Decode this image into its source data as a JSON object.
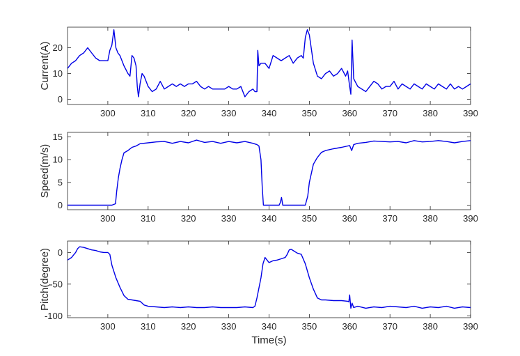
{
  "chart_data": [
    {
      "type": "line",
      "title": "",
      "xlabel": "",
      "ylabel": "Current(A)",
      "xlim": [
        290,
        390
      ],
      "ylim": [
        -2,
        28
      ],
      "xticks": [
        300,
        310,
        320,
        330,
        340,
        350,
        360,
        370,
        380,
        390
      ],
      "yticks": [
        0,
        10,
        20
      ],
      "color": "#0000e6",
      "series": [
        {
          "x": [
            290,
            291,
            292,
            293,
            294,
            295,
            296,
            297,
            298,
            299,
            300,
            300.5,
            301,
            301.5,
            302,
            302.5,
            303,
            304,
            305,
            305.5,
            306,
            306.5,
            307,
            307.3,
            307.6,
            308,
            308.5,
            309,
            310,
            311,
            312,
            313,
            314,
            315,
            316,
            317,
            318,
            319,
            320,
            321,
            322,
            323,
            324,
            325,
            326,
            327,
            328,
            329,
            330,
            331,
            332,
            333,
            334,
            335,
            336,
            336.5,
            337,
            337.2,
            337.5,
            338,
            339,
            340,
            341,
            342,
            343,
            344,
            345,
            346,
            347,
            348,
            348.5,
            349,
            349.5,
            350,
            351,
            352,
            353,
            354,
            355,
            356,
            357,
            358,
            359,
            359.5,
            360,
            360.3,
            360.6,
            361,
            362,
            363,
            364,
            365,
            366,
            367,
            368,
            369,
            370,
            371,
            372,
            373,
            374,
            375,
            376,
            377,
            378,
            379,
            380,
            381,
            382,
            383,
            384,
            385,
            386,
            387,
            388,
            389,
            390
          ],
          "y": [
            12,
            14,
            15,
            17,
            18,
            20,
            18,
            16,
            15,
            15,
            15,
            19,
            21,
            27,
            20,
            18,
            17,
            13,
            10,
            9,
            17,
            16,
            13,
            5,
            1,
            6,
            10,
            9,
            5,
            3,
            4,
            7,
            4,
            5,
            6,
            5,
            6,
            5,
            6,
            6,
            7,
            5,
            4,
            5,
            4,
            4,
            4,
            4,
            5,
            4,
            4,
            5,
            1,
            3,
            4,
            3,
            3,
            19,
            13,
            14,
            14,
            12,
            17,
            16,
            15,
            16,
            17,
            14,
            16,
            17,
            16,
            24,
            27,
            25,
            14,
            9,
            8,
            10,
            11,
            9,
            10,
            12,
            9,
            11,
            5,
            2,
            23,
            8,
            5,
            4,
            3,
            5,
            7,
            6,
            4,
            5,
            5,
            7,
            4,
            6,
            5,
            4,
            6,
            5,
            4,
            6,
            5,
            4,
            6,
            5,
            4,
            6,
            4,
            5,
            4,
            5,
            6
          ]
        }
      ]
    },
    {
      "type": "line",
      "title": "",
      "xlabel": "",
      "ylabel": "Speed(m/s)",
      "xlim": [
        290,
        390
      ],
      "ylim": [
        -1,
        16
      ],
      "xticks": [
        300,
        310,
        320,
        330,
        340,
        350,
        360,
        370,
        380,
        390
      ],
      "yticks": [
        0,
        5,
        10,
        15
      ],
      "color": "#0000e6",
      "series": [
        {
          "x": [
            290,
            301,
            301.9,
            302.2,
            302.6,
            303,
            303.5,
            304,
            305,
            306,
            307,
            308,
            310,
            312,
            314,
            316,
            318,
            320,
            322,
            324,
            326,
            328,
            330,
            332,
            334,
            336,
            337,
            337.5,
            338,
            338.3,
            338.6,
            342.5,
            342.8,
            343.1,
            343.4,
            349,
            349.2,
            349.6,
            350,
            350.5,
            351,
            352,
            353,
            354,
            356,
            358,
            360,
            360.5,
            361,
            362,
            364,
            366,
            368,
            370,
            372,
            374,
            376,
            378,
            380,
            382,
            384,
            386,
            388,
            390
          ],
          "y": [
            0,
            0,
            0.3,
            3,
            6,
            8,
            10,
            11.5,
            12,
            12.7,
            13,
            13.5,
            13.7,
            13.9,
            14,
            13.6,
            14,
            13.7,
            14.3,
            13.8,
            14,
            13.6,
            14,
            13.7,
            14,
            13.6,
            13.3,
            13,
            10,
            4,
            0,
            0,
            0.6,
            1.7,
            0,
            0,
            0.7,
            2,
            5,
            7,
            9,
            10.5,
            11.6,
            12,
            12.4,
            12.7,
            13.1,
            12,
            13.3,
            13.6,
            13.8,
            14.1,
            14,
            13.9,
            14,
            13.7,
            14.2,
            13.9,
            14,
            14.2,
            14,
            13.7,
            14,
            14.2
          ]
        }
      ]
    },
    {
      "type": "line",
      "title": "",
      "xlabel": "Time(s)",
      "ylabel": "Pitch(degree)",
      "xlim": [
        290,
        390
      ],
      "ylim": [
        -103,
        18
      ],
      "xticks": [
        300,
        310,
        320,
        330,
        340,
        350,
        360,
        370,
        380,
        390
      ],
      "yticks": [
        -100,
        -50,
        0
      ],
      "color": "#0000e6",
      "series": [
        {
          "x": [
            290,
            291,
            292,
            292.5,
            293,
            294,
            295,
            296,
            297,
            298,
            299,
            300,
            300.5,
            301,
            302,
            303,
            304,
            305,
            306,
            307,
            308,
            309,
            310,
            312,
            314,
            316,
            318,
            320,
            322,
            324,
            326,
            328,
            330,
            332,
            334,
            336,
            336.5,
            337,
            338,
            338.5,
            339,
            340,
            341,
            342,
            343,
            344,
            344.5,
            345,
            345.5,
            346,
            347,
            348,
            349,
            350,
            351,
            352,
            353,
            354,
            356,
            358,
            359.5,
            359.8,
            360,
            360.3,
            360.6,
            361,
            362,
            364,
            366,
            368,
            370,
            372,
            374,
            376,
            378,
            380,
            382,
            384,
            386,
            388,
            390
          ],
          "y": [
            -12,
            -8,
            0,
            6,
            9,
            8,
            6,
            4,
            3,
            1,
            0,
            0,
            -3,
            -20,
            -40,
            -55,
            -68,
            -74,
            -75,
            -76,
            -77,
            -83,
            -85,
            -86,
            -87,
            -86,
            -87,
            -86,
            -87,
            -87,
            -86,
            -87,
            -87,
            -87,
            -86,
            -87,
            -85,
            -72,
            -40,
            -18,
            -8,
            -16,
            -13,
            -12,
            -10,
            -8,
            -3,
            4,
            5,
            3,
            -1,
            -3,
            -18,
            -40,
            -58,
            -72,
            -75,
            -75,
            -76,
            -76,
            -77,
            -78,
            -67,
            -88,
            -80,
            -87,
            -85,
            -88,
            -86,
            -87,
            -85,
            -86,
            -87,
            -85,
            -88,
            -86,
            -87,
            -85,
            -88,
            -86,
            -87
          ]
        }
      ]
    }
  ]
}
